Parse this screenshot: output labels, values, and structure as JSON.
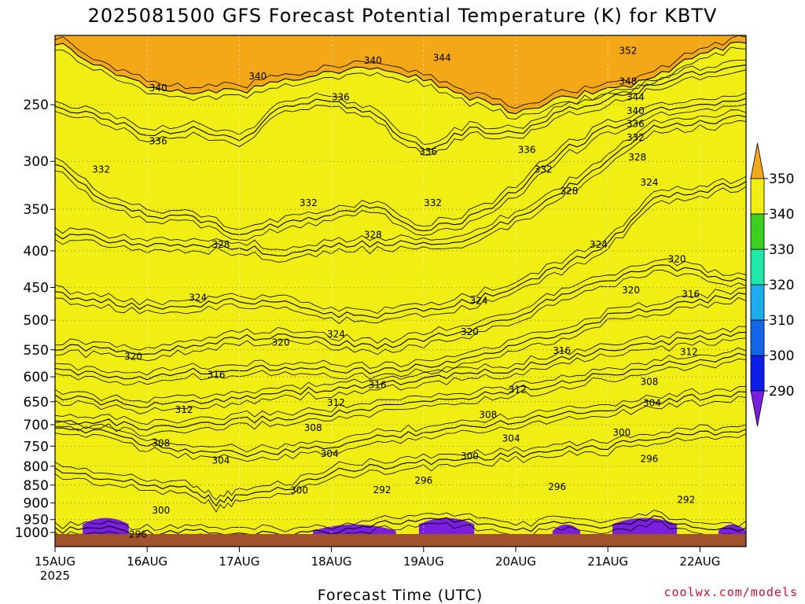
{
  "chart_data": {
    "type": "area",
    "title": "2025081500 GFS Forecast Potential Temperature (K) for KBTV",
    "xlabel": "Forecast Time (UTC)",
    "ylabel": "",
    "credit": "coolwx.com/models",
    "x_ticks": [
      {
        "label": "15AUG",
        "sub": "2025",
        "day": 0
      },
      {
        "label": "16AUG",
        "day": 1
      },
      {
        "label": "17AUG",
        "day": 2
      },
      {
        "label": "18AUG",
        "day": 3
      },
      {
        "label": "19AUG",
        "day": 4
      },
      {
        "label": "20AUG",
        "day": 5
      },
      {
        "label": "21AUG",
        "day": 6
      },
      {
        "label": "22AUG",
        "day": 7
      }
    ],
    "xlim_days": [
      0,
      7.5
    ],
    "y_ticks": [
      250,
      300,
      350,
      400,
      450,
      500,
      550,
      600,
      650,
      700,
      750,
      800,
      850,
      900,
      950,
      1000
    ],
    "ylim_hpa": [
      200,
      1000
    ],
    "y_scale": "log",
    "grid": true,
    "colorbar": {
      "levels": [
        290,
        300,
        310,
        320,
        330,
        340,
        350
      ],
      "colors": [
        "#7a1fe0",
        "#0a1ee8",
        "#1466e8",
        "#1eaeee",
        "#20e8a8",
        "#3cd01e",
        "#f0ee12",
        "#f4a818"
      ]
    },
    "series": [
      {
        "name": "296",
        "values": [
          [
            0,
            985
          ],
          [
            0.5,
            975
          ],
          [
            1,
            990
          ],
          [
            1.5,
            980
          ],
          [
            2,
            1000
          ],
          [
            2.5,
            995
          ],
          [
            3,
            985
          ],
          [
            3.5,
            960
          ],
          [
            4,
            955
          ],
          [
            4.5,
            950
          ],
          [
            5,
            990
          ],
          [
            5.5,
            960
          ],
          [
            6,
            980
          ],
          [
            6.5,
            945
          ],
          [
            7,
            985
          ],
          [
            7.5,
            975
          ]
        ]
      },
      {
        "name": "300",
        "values": [
          [
            0,
            810
          ],
          [
            0.5,
            830
          ],
          [
            1,
            850
          ],
          [
            1.5,
            860
          ],
          [
            1.75,
            900
          ],
          [
            2,
            880
          ],
          [
            2.5,
            860
          ],
          [
            3,
            815
          ],
          [
            3.5,
            800
          ],
          [
            4,
            790
          ],
          [
            4.5,
            780
          ],
          [
            5,
            770
          ],
          [
            5.5,
            760
          ],
          [
            6,
            750
          ],
          [
            6.5,
            730
          ],
          [
            7,
            720
          ],
          [
            7.5,
            710
          ]
        ]
      },
      {
        "name": "304",
        "values": [
          [
            0,
            715
          ],
          [
            0.5,
            710
          ],
          [
            1,
            745
          ],
          [
            1.5,
            760
          ],
          [
            2,
            770
          ],
          [
            2.5,
            765
          ],
          [
            3,
            750
          ],
          [
            3.5,
            730
          ],
          [
            4,
            715
          ],
          [
            4.5,
            705
          ],
          [
            5,
            690
          ],
          [
            5.5,
            675
          ],
          [
            6,
            665
          ],
          [
            6.5,
            650
          ],
          [
            7,
            640
          ],
          [
            7.5,
            630
          ]
        ]
      },
      {
        "name": "308",
        "values": [
          [
            0,
            695
          ],
          [
            0.5,
            690
          ],
          [
            1,
            710
          ],
          [
            1.5,
            705
          ],
          [
            2,
            690
          ],
          [
            2.5,
            685
          ],
          [
            3,
            675
          ],
          [
            3.5,
            665
          ],
          [
            4,
            650
          ],
          [
            4.5,
            640
          ],
          [
            5,
            625
          ],
          [
            5.5,
            610
          ],
          [
            6,
            595
          ],
          [
            6.5,
            580
          ],
          [
            7,
            570
          ],
          [
            7.5,
            560
          ]
        ]
      },
      {
        "name": "312",
        "values": [
          [
            0,
            640
          ],
          [
            0.5,
            650
          ],
          [
            1,
            660
          ],
          [
            1.5,
            650
          ],
          [
            2,
            640
          ],
          [
            2.5,
            630
          ],
          [
            3,
            625
          ],
          [
            3.5,
            615
          ],
          [
            4,
            605
          ],
          [
            4.5,
            595
          ],
          [
            5,
            585
          ],
          [
            5.5,
            565
          ],
          [
            6,
            550
          ],
          [
            6.5,
            540
          ],
          [
            7,
            530
          ],
          [
            7.5,
            520
          ]
        ]
      },
      {
        "name": "316",
        "values": [
          [
            0,
            590
          ],
          [
            0.5,
            595
          ],
          [
            1,
            600
          ],
          [
            1.5,
            590
          ],
          [
            2,
            585
          ],
          [
            2.5,
            580
          ],
          [
            3,
            585
          ],
          [
            3.5,
            590
          ],
          [
            4,
            580
          ],
          [
            4.5,
            565
          ],
          [
            5,
            545
          ],
          [
            5.5,
            520
          ],
          [
            6,
            495
          ],
          [
            6.5,
            480
          ],
          [
            7,
            470
          ],
          [
            7.5,
            460
          ]
        ]
      },
      {
        "name": "320",
        "values": [
          [
            0,
            545
          ],
          [
            0.5,
            550
          ],
          [
            1,
            555
          ],
          [
            1.5,
            540
          ],
          [
            2,
            530
          ],
          [
            2.5,
            525
          ],
          [
            3,
            535
          ],
          [
            3.5,
            545
          ],
          [
            4,
            530
          ],
          [
            4.5,
            515
          ],
          [
            5,
            495
          ],
          [
            5.5,
            460
          ],
          [
            6,
            440
          ],
          [
            6.5,
            420
          ],
          [
            7,
            430
          ],
          [
            7.5,
            440
          ]
        ]
      },
      {
        "name": "324",
        "values": [
          [
            0,
            460
          ],
          [
            0.5,
            470
          ],
          [
            1,
            480
          ],
          [
            1.5,
            475
          ],
          [
            2,
            470
          ],
          [
            2.5,
            475
          ],
          [
            3,
            490
          ],
          [
            3.5,
            495
          ],
          [
            4,
            485
          ],
          [
            4.5,
            470
          ],
          [
            5,
            450
          ],
          [
            5.5,
            420
          ],
          [
            6,
            390
          ],
          [
            6.5,
            340
          ],
          [
            7,
            330
          ],
          [
            7.5,
            320
          ]
        ]
      },
      {
        "name": "328",
        "values": [
          [
            0,
            380
          ],
          [
            0.5,
            385
          ],
          [
            1,
            395
          ],
          [
            1.5,
            390
          ],
          [
            2,
            395
          ],
          [
            2.5,
            405
          ],
          [
            3,
            395
          ],
          [
            3.5,
            390
          ],
          [
            4,
            390
          ],
          [
            4.5,
            385
          ],
          [
            5,
            360
          ],
          [
            5.5,
            330
          ],
          [
            6,
            300
          ],
          [
            6.5,
            270
          ],
          [
            7,
            265
          ],
          [
            7.5,
            260
          ]
        ]
      },
      {
        "name": "332",
        "values": [
          [
            0,
            300
          ],
          [
            0.5,
            340
          ],
          [
            1,
            355
          ],
          [
            1.5,
            360
          ],
          [
            2,
            380
          ],
          [
            2.5,
            365
          ],
          [
            3,
            355
          ],
          [
            3.5,
            345
          ],
          [
            4,
            375
          ],
          [
            4.5,
            360
          ],
          [
            5,
            330
          ],
          [
            5.5,
            290
          ],
          [
            6,
            270
          ],
          [
            6.5,
            255
          ],
          [
            7,
            250
          ],
          [
            7.5,
            245
          ]
        ]
      },
      {
        "name": "336",
        "values": [
          [
            0,
            250
          ],
          [
            0.5,
            260
          ],
          [
            1,
            275
          ],
          [
            1.5,
            270
          ],
          [
            2,
            280
          ],
          [
            2.5,
            250
          ],
          [
            3,
            245
          ],
          [
            3.5,
            260
          ],
          [
            4,
            290
          ],
          [
            4.5,
            270
          ],
          [
            5,
            275
          ],
          [
            5.5,
            255
          ],
          [
            6,
            245
          ],
          [
            6.5,
            235
          ],
          [
            7,
            225
          ],
          [
            7.5,
            220
          ]
        ]
      },
      {
        "name": "340",
        "values": [
          [
            0,
            205
          ],
          [
            0.5,
            220
          ],
          [
            1,
            235
          ],
          [
            1.5,
            240
          ],
          [
            2,
            240
          ],
          [
            2.5,
            230
          ],
          [
            3,
            225
          ],
          [
            3.5,
            220
          ],
          [
            4,
            230
          ],
          [
            4.5,
            245
          ],
          [
            5,
            255
          ],
          [
            5.5,
            245
          ],
          [
            6,
            238
          ],
          [
            6.5,
            230
          ],
          [
            7,
            210
          ],
          [
            7.5,
            205
          ]
        ]
      }
    ],
    "contour_labels": [
      {
        "text": "352",
        "day": 6.22,
        "p": 210
      },
      {
        "text": "348",
        "day": 6.22,
        "p": 232
      },
      {
        "text": "344",
        "day": 4.2,
        "p": 215
      },
      {
        "text": "344",
        "day": 6.3,
        "p": 244
      },
      {
        "text": "340",
        "day": 1.12,
        "p": 237
      },
      {
        "text": "340",
        "day": 2.2,
        "p": 228
      },
      {
        "text": "340",
        "day": 3.45,
        "p": 217
      },
      {
        "text": "340",
        "day": 6.3,
        "p": 255
      },
      {
        "text": "336",
        "day": 1.12,
        "p": 281
      },
      {
        "text": "336",
        "day": 3.1,
        "p": 244
      },
      {
        "text": "336",
        "day": 4.05,
        "p": 291
      },
      {
        "text": "336",
        "day": 5.12,
        "p": 289
      },
      {
        "text": "336",
        "day": 6.3,
        "p": 266
      },
      {
        "text": "332",
        "day": 0.5,
        "p": 308
      },
      {
        "text": "332",
        "day": 2.75,
        "p": 343
      },
      {
        "text": "332",
        "day": 4.1,
        "p": 343
      },
      {
        "text": "332",
        "day": 5.3,
        "p": 308
      },
      {
        "text": "332",
        "day": 6.3,
        "p": 278
      },
      {
        "text": "328",
        "day": 1.8,
        "p": 392
      },
      {
        "text": "328",
        "day": 3.45,
        "p": 380
      },
      {
        "text": "328",
        "day": 5.58,
        "p": 330
      },
      {
        "text": "328",
        "day": 6.32,
        "p": 296
      },
      {
        "text": "324",
        "day": 1.55,
        "p": 465
      },
      {
        "text": "324",
        "day": 3.05,
        "p": 523
      },
      {
        "text": "324",
        "day": 4.6,
        "p": 470
      },
      {
        "text": "324",
        "day": 5.9,
        "p": 392
      },
      {
        "text": "324",
        "day": 6.45,
        "p": 321
      },
      {
        "text": "320",
        "day": 0.85,
        "p": 562
      },
      {
        "text": "320",
        "day": 2.45,
        "p": 537
      },
      {
        "text": "320",
        "day": 4.5,
        "p": 519
      },
      {
        "text": "320",
        "day": 6.25,
        "p": 454
      },
      {
        "text": "320",
        "day": 6.75,
        "p": 411
      },
      {
        "text": "316",
        "day": 1.75,
        "p": 596
      },
      {
        "text": "316",
        "day": 3.5,
        "p": 616
      },
      {
        "text": "316",
        "day": 5.5,
        "p": 552
      },
      {
        "text": "316",
        "day": 6.9,
        "p": 460
      },
      {
        "text": "312",
        "day": 1.4,
        "p": 667
      },
      {
        "text": "312",
        "day": 3.05,
        "p": 652
      },
      {
        "text": "312",
        "day": 5.02,
        "p": 625
      },
      {
        "text": "312",
        "day": 6.88,
        "p": 554
      },
      {
        "text": "308",
        "day": 1.15,
        "p": 743
      },
      {
        "text": "308",
        "day": 2.8,
        "p": 707
      },
      {
        "text": "308",
        "day": 4.7,
        "p": 678
      },
      {
        "text": "308",
        "day": 6.45,
        "p": 610
      },
      {
        "text": "304",
        "day": 1.8,
        "p": 785
      },
      {
        "text": "304",
        "day": 2.98,
        "p": 769
      },
      {
        "text": "304",
        "day": 4.95,
        "p": 732
      },
      {
        "text": "304",
        "day": 6.48,
        "p": 653
      },
      {
        "text": "300",
        "day": 1.15,
        "p": 922
      },
      {
        "text": "300",
        "day": 2.65,
        "p": 865
      },
      {
        "text": "300",
        "day": 4.5,
        "p": 774
      },
      {
        "text": "300",
        "day": 6.15,
        "p": 718
      },
      {
        "text": "296",
        "day": 4.0,
        "p": 838
      },
      {
        "text": "296",
        "day": 5.45,
        "p": 855
      },
      {
        "text": "296",
        "day": 6.45,
        "p": 781
      },
      {
        "text": "292",
        "day": 3.55,
        "p": 863
      },
      {
        "text": "292",
        "day": 6.85,
        "p": 891
      },
      {
        "text": "296",
        "day": 0.9,
        "p": 996
      }
    ]
  }
}
